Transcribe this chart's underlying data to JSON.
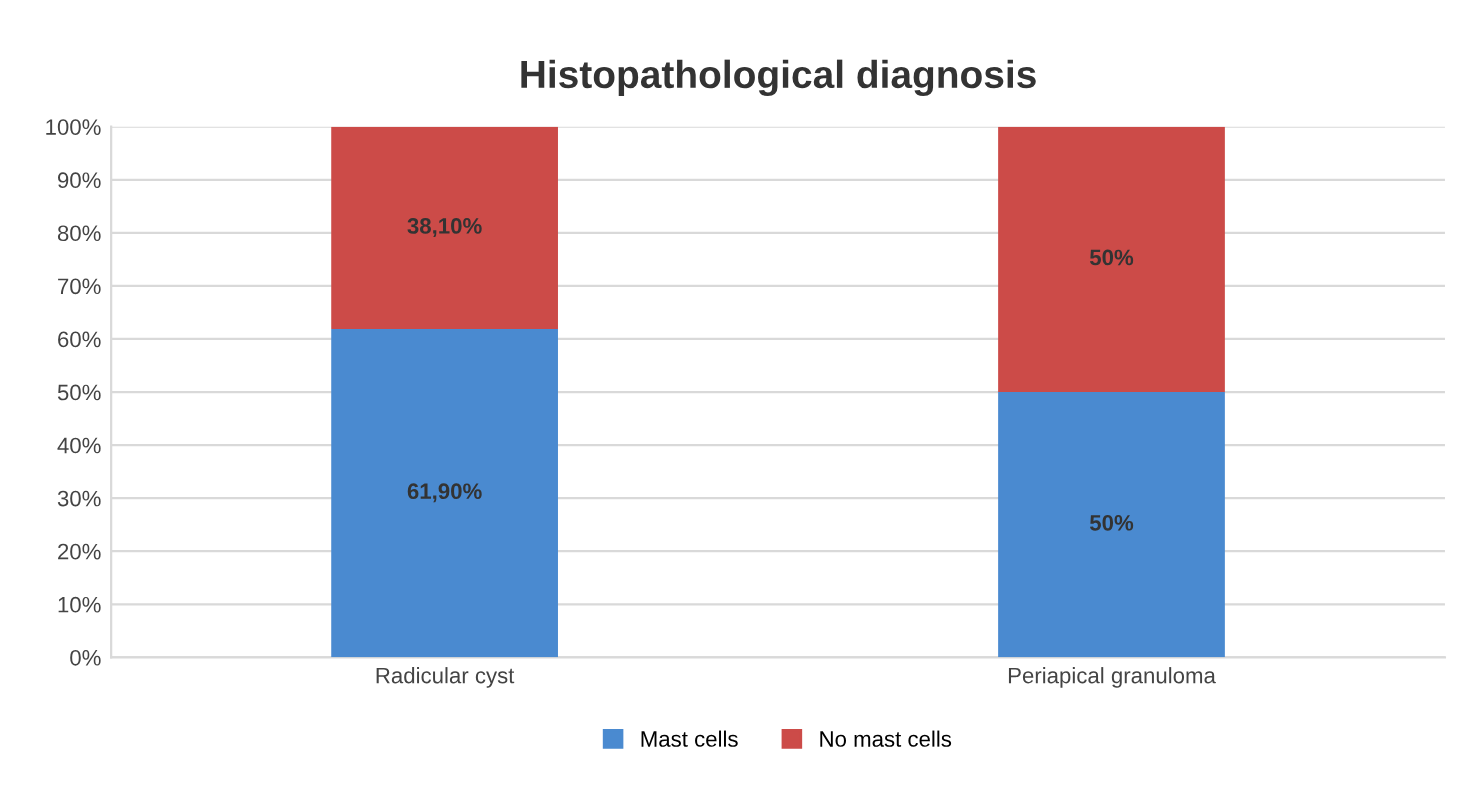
{
  "chart_data": {
    "type": "bar",
    "title": "Histopathological diagnosis",
    "stacked": true,
    "categories": [
      "Radicular cyst",
      "Periapical granuloma"
    ],
    "series": [
      {
        "name": "Mast cells",
        "color": "#4a8ad0",
        "values": [
          61.9,
          50
        ],
        "value_labels": [
          "61,90%",
          "50%"
        ]
      },
      {
        "name": "No mast cells",
        "color": "#cc4b48",
        "values": [
          38.1,
          50
        ],
        "value_labels": [
          "38,10%",
          "50%"
        ]
      }
    ],
    "ylim": [
      0,
      100
    ],
    "yticks": [
      {
        "value": 0,
        "label": "0%"
      },
      {
        "value": 10,
        "label": "10%"
      },
      {
        "value": 20,
        "label": "20%"
      },
      {
        "value": 30,
        "label": "30%"
      },
      {
        "value": 40,
        "label": "40%"
      },
      {
        "value": 50,
        "label": "50%"
      },
      {
        "value": 60,
        "label": "60%"
      },
      {
        "value": 70,
        "label": "70%"
      },
      {
        "value": 80,
        "label": "80%"
      },
      {
        "value": 90,
        "label": "90%"
      },
      {
        "value": 100,
        "label": "100%"
      }
    ],
    "grid": "y",
    "legend": "bottom"
  }
}
